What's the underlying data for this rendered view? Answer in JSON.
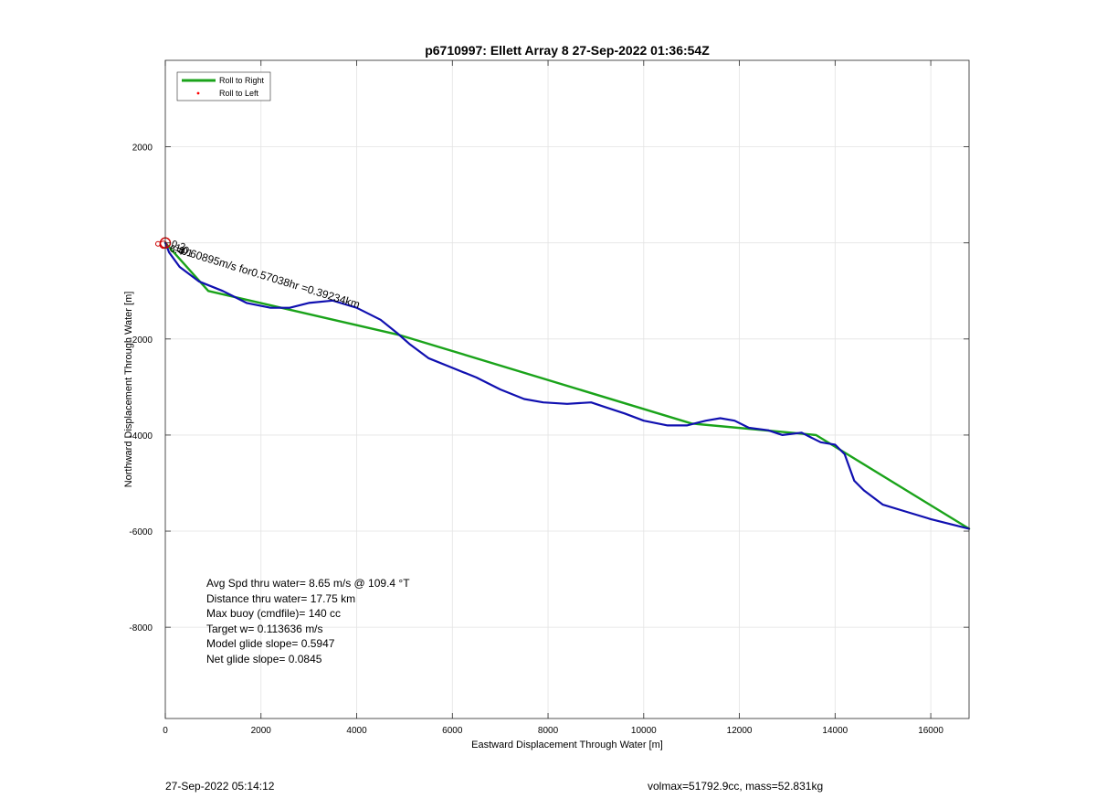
{
  "chart_data": {
    "type": "line",
    "title": "p6710997: Ellett Array 8 27-Sep-2022 01:36:54Z",
    "xlabel": "Eastward Displacement Through Water [m]",
    "ylabel": "Northward Displacement Through Water [m]",
    "xlim": [
      0,
      16800
    ],
    "ylim": [
      -9900,
      3800
    ],
    "xticks": [
      0,
      2000,
      4000,
      6000,
      8000,
      10000,
      12000,
      14000,
      16000
    ],
    "yticks": [
      -8000,
      -6000,
      -4000,
      -2000,
      0,
      2000
    ],
    "ytick_labels": [
      "-8000",
      "-6000",
      "-4000",
      "-2000",
      "",
      "2000"
    ],
    "grid": true,
    "legend_placement": "top-left",
    "legend": [
      {
        "label": "Roll to Right",
        "color": "#1aa31a",
        "marker": "line"
      },
      {
        "label": "Roll to Left",
        "color": "#ff0000",
        "marker": "dot"
      }
    ],
    "series": [
      {
        "name": "Roll to Right",
        "color": "#1aa31a",
        "x": [
          0,
          900,
          4900,
          11000,
          13600,
          16800
        ],
        "y": [
          0,
          -1000,
          -1920,
          -3760,
          -4000,
          -5950
        ]
      },
      {
        "name": "",
        "color": "#1010b0",
        "x": [
          0,
          80,
          300,
          700,
          1200,
          1700,
          2200,
          2600,
          3000,
          3500,
          4000,
          4500,
          4850,
          5100,
          5500,
          6000,
          6500,
          7000,
          7500,
          7900,
          8400,
          8900,
          9200,
          9600,
          10000,
          10500,
          10900,
          11300,
          11600,
          11900,
          12200,
          12600,
          12900,
          13300,
          13500,
          13700,
          14000,
          14200,
          14400,
          14600,
          15000,
          15500,
          16000,
          16400,
          16800
        ],
        "y": [
          0,
          -200,
          -500,
          -800,
          -1000,
          -1250,
          -1350,
          -1350,
          -1250,
          -1200,
          -1350,
          -1600,
          -1880,
          -2100,
          -2400,
          -2600,
          -2800,
          -3050,
          -3250,
          -3320,
          -3350,
          -3320,
          -3420,
          -3550,
          -3700,
          -3800,
          -3800,
          -3700,
          -3650,
          -3700,
          -3850,
          -3900,
          -4000,
          -3950,
          -4050,
          -4150,
          -4200,
          -4400,
          -4950,
          -5150,
          -5450,
          -5600,
          -5750,
          -5850,
          -5950
        ]
      }
    ],
    "annotation": "=0.60895m/s for0.57038hr =0.39234km",
    "overlap_labels": [
      "0.2",
      "1.0",
      "6.4",
      "3.1"
    ],
    "stats": [
      "Avg Spd thru water=  8.65 m/s @ 109.4 °T",
      "Distance thru water= 17.75 km",
      "Max buoy (cmdfile)= 140 cc",
      "Target w= 0.113636 m/s",
      "Model glide slope= 0.5947",
      "Net glide slope= 0.0845"
    ]
  },
  "footer": {
    "timestamp": "27-Sep-2022 05:14:12",
    "volmass": "volmax=51792.9cc, mass=52.831kg"
  }
}
